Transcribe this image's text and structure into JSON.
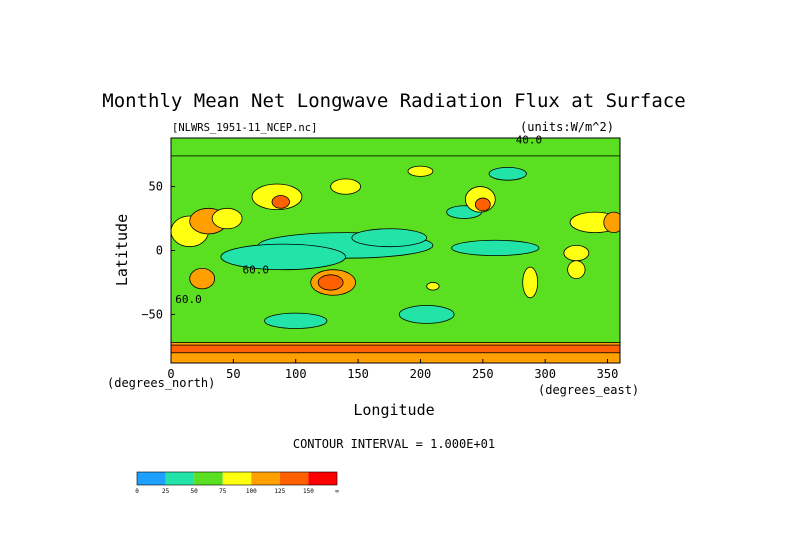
{
  "chart_data": {
    "type": "heatmap",
    "title": "Monthly Mean Net Longwave Radiation Flux at Surface",
    "file_label": "[NLWRS_1951-11_NCEP.nc]",
    "units_label": "(units:W/m^2)",
    "xlabel": "Longitude",
    "ylabel": "Latitude",
    "x_unit_label": "(degrees_east)",
    "y_unit_label": "(degrees_north)",
    "xlim": [
      0,
      360
    ],
    "ylim": [
      -88,
      88
    ],
    "x_ticks": [
      {
        "value": 0,
        "label": "0"
      },
      {
        "value": 50,
        "label": "50"
      },
      {
        "value": 100,
        "label": "100"
      },
      {
        "value": 150,
        "label": "150"
      },
      {
        "value": 200,
        "label": "200"
      },
      {
        "value": 250,
        "label": "250"
      },
      {
        "value": 300,
        "label": "300"
      },
      {
        "value": 350,
        "label": "350"
      }
    ],
    "y_ticks": [
      {
        "value": 50,
        "label": "50"
      },
      {
        "value": 0,
        "label": "0"
      },
      {
        "value": -50,
        "label": "−50"
      }
    ],
    "contour_interval_label": "CONTOUR INTERVAL = 1.000E+01",
    "contour_labels": [
      {
        "lon": 287,
        "lat": 87,
        "text": "40.0"
      },
      {
        "lon": 68,
        "lat": -15,
        "text": "60.0"
      },
      {
        "lon": 14,
        "lat": -38,
        "text": "60.0"
      }
    ],
    "colorbar": {
      "bins": [
        {
          "from": 0,
          "to": 25,
          "color": "#1ea0ff"
        },
        {
          "from": 25,
          "to": 50,
          "color": "#22e4a8"
        },
        {
          "from": 50,
          "to": 75,
          "color": "#5ae020"
        },
        {
          "from": 75,
          "to": 100,
          "color": "#ffff10"
        },
        {
          "from": 100,
          "to": 125,
          "color": "#ffa000"
        },
        {
          "from": 125,
          "to": 150,
          "color": "#ff6000"
        },
        {
          "from": 150,
          "to": "∞",
          "color": "#ff0000"
        }
      ],
      "tick_labels": [
        "0",
        "25",
        "50",
        "75",
        "100",
        "125",
        "150",
        "∞"
      ]
    },
    "regions": [
      {
        "type": "band",
        "lat": [
          -88,
          -72
        ],
        "value": 100
      },
      {
        "type": "band",
        "lat": [
          -80,
          -74
        ],
        "value": 125
      },
      {
        "type": "band",
        "lat": [
          74,
          88
        ],
        "value": 60
      },
      {
        "type": "ellipse",
        "lon": 140,
        "lat": 4,
        "rlon": 70,
        "rlat": 10,
        "value": 35
      },
      {
        "type": "ellipse",
        "lon": 175,
        "lat": 10,
        "rlon": 30,
        "rlat": 7,
        "value": 35
      },
      {
        "type": "ellipse",
        "lon": 90,
        "lat": -5,
        "rlon": 50,
        "rlat": 10,
        "value": 38
      },
      {
        "type": "ellipse",
        "lon": 260,
        "lat": 2,
        "rlon": 35,
        "rlat": 6,
        "value": 38
      },
      {
        "type": "ellipse",
        "lon": 205,
        "lat": -50,
        "rlon": 22,
        "rlat": 7,
        "value": 40
      },
      {
        "type": "ellipse",
        "lon": 100,
        "lat": -55,
        "rlon": 25,
        "rlat": 6,
        "value": 40
      },
      {
        "type": "ellipse",
        "lon": 235,
        "lat": 30,
        "rlon": 14,
        "rlat": 5,
        "value": 40
      },
      {
        "type": "ellipse",
        "lon": 270,
        "lat": 60,
        "rlon": 15,
        "rlat": 5,
        "value": 35
      },
      {
        "type": "ellipse",
        "lon": 15,
        "lat": 15,
        "rlon": 15,
        "rlat": 12,
        "value": 85
      },
      {
        "type": "ellipse",
        "lon": 30,
        "lat": 23,
        "rlon": 15,
        "rlat": 10,
        "value": 110
      },
      {
        "type": "ellipse",
        "lon": 45,
        "lat": 25,
        "rlon": 12,
        "rlat": 8,
        "value": 80
      },
      {
        "type": "ellipse",
        "lon": 85,
        "lat": 42,
        "rlon": 20,
        "rlat": 10,
        "value": 90
      },
      {
        "type": "ellipse",
        "lon": 88,
        "lat": 38,
        "rlon": 7,
        "rlat": 5,
        "value": 130
      },
      {
        "type": "ellipse",
        "lon": 140,
        "lat": 50,
        "rlon": 12,
        "rlat": 6,
        "value": 80
      },
      {
        "type": "ellipse",
        "lon": 248,
        "lat": 40,
        "rlon": 12,
        "rlat": 10,
        "value": 90
      },
      {
        "type": "ellipse",
        "lon": 250,
        "lat": 36,
        "rlon": 6,
        "rlat": 5,
        "value": 130
      },
      {
        "type": "ellipse",
        "lon": 340,
        "lat": 22,
        "rlon": 20,
        "rlat": 8,
        "value": 85
      },
      {
        "type": "ellipse",
        "lon": 355,
        "lat": 22,
        "rlon": 8,
        "rlat": 8,
        "value": 110
      },
      {
        "type": "ellipse",
        "lon": 130,
        "lat": -25,
        "rlon": 18,
        "rlat": 10,
        "value": 110
      },
      {
        "type": "ellipse",
        "lon": 128,
        "lat": -25,
        "rlon": 10,
        "rlat": 6,
        "value": 135
      },
      {
        "type": "ellipse",
        "lon": 25,
        "lat": -22,
        "rlon": 10,
        "rlat": 8,
        "value": 120
      },
      {
        "type": "ellipse",
        "lon": 288,
        "lat": -25,
        "rlon": 6,
        "rlat": 12,
        "value": 85
      },
      {
        "type": "ellipse",
        "lon": 325,
        "lat": -2,
        "rlon": 10,
        "rlat": 6,
        "value": 80
      },
      {
        "type": "ellipse",
        "lon": 325,
        "lat": -15,
        "rlon": 7,
        "rlat": 7,
        "value": 90
      },
      {
        "type": "ellipse",
        "lon": 210,
        "lat": -28,
        "rlon": 5,
        "rlat": 3,
        "value": 85
      },
      {
        "type": "ellipse",
        "lon": 200,
        "lat": 62,
        "rlon": 10,
        "rlat": 4,
        "value": 80
      }
    ]
  }
}
